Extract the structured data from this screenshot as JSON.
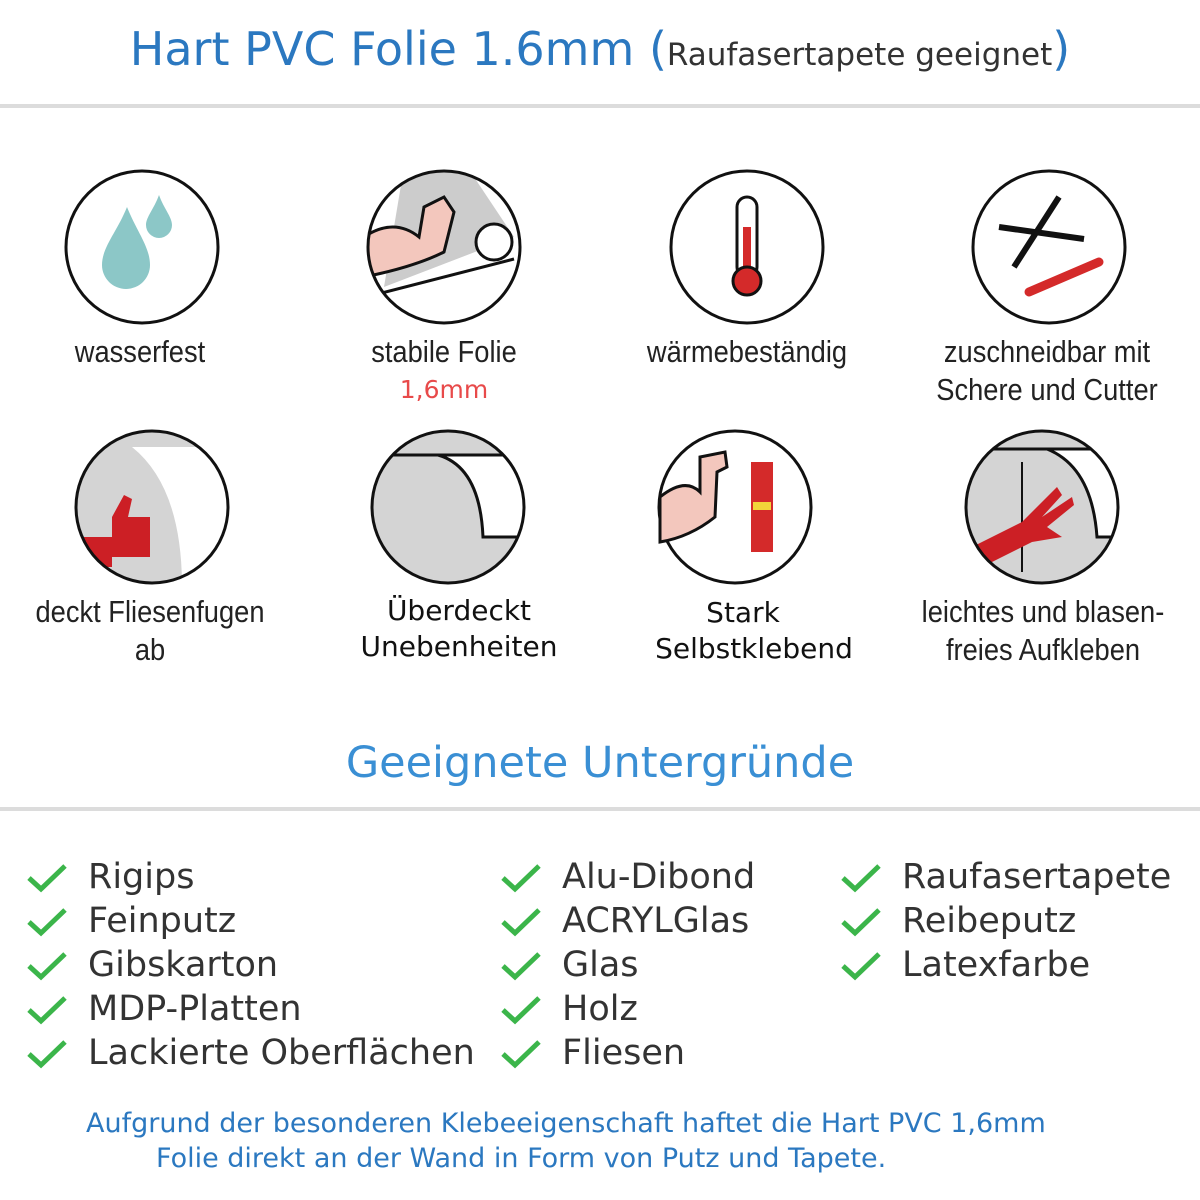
{
  "header": {
    "title": "Hart PVC Folie 1.6mm",
    "subtitle": "Raufasertapete geeignet",
    "paren_open": "(",
    "paren_close": ")"
  },
  "features": [
    {
      "icon": "water-drops-icon",
      "label": "wasserfest"
    },
    {
      "icon": "strong-arm-roll-icon",
      "label": "stabile Folie",
      "extra": "1,6mm"
    },
    {
      "icon": "thermometer-icon",
      "label": "wärmebeständig"
    },
    {
      "icon": "scissors-cutter-icon",
      "label": "zuschneidbar mit",
      "label2": "Schere und Cutter"
    },
    {
      "icon": "thumbs-up-tiles-icon",
      "label": "deckt Fliesenfugen ab"
    },
    {
      "icon": "foil-corner-icon",
      "label": "Überdeckt",
      "label2": "Unebenheiten"
    },
    {
      "icon": "strong-arm-glue-icon",
      "label": "Stark",
      "label2": "Selbstklebend"
    },
    {
      "icon": "hand-smoothing-icon",
      "label": "leichtes und blasen-",
      "label2": "freies Aufkleben"
    }
  ],
  "section": {
    "title": "Geeignete Untergründe"
  },
  "surfaces": {
    "col1": [
      "Rigips",
      "Feinputz",
      "Gibskarton",
      "MDP-Platten",
      "Lackierte Oberflächen"
    ],
    "col2": [
      "Alu-Dibond",
      "ACRYLGlas",
      "Glas",
      "Holz",
      "Fliesen"
    ],
    "col3": [
      "Raufasertapete",
      "Reibeputz",
      "Latexfarbe"
    ]
  },
  "footer": {
    "line1": "Aufgrund der besonderen Klebeeigenschaft haftet die Hart PVC 1,6mm",
    "line2": "Folie direkt an der Wand in Form von Putz und Tapete."
  },
  "colors": {
    "title_blue": "#2b78c0",
    "check_green": "#3bb54a",
    "accent_red": "#e84a4a",
    "drop_teal": "#8cc7c7"
  }
}
